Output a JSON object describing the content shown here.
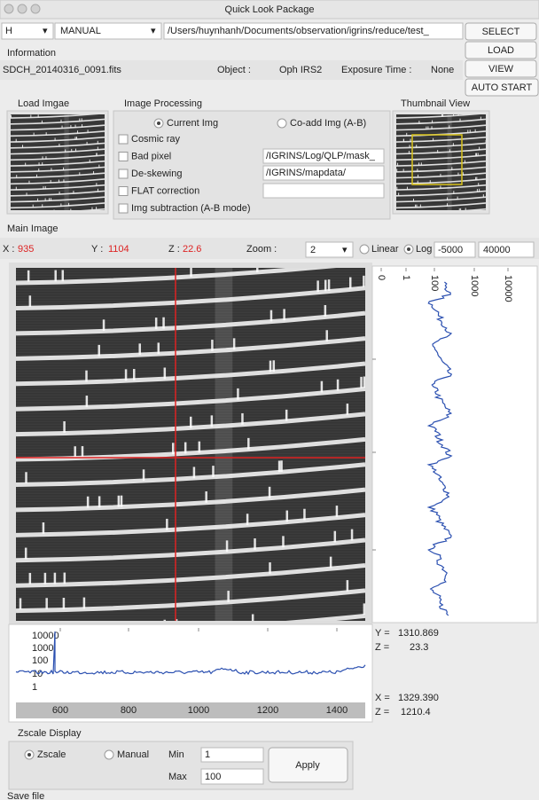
{
  "window": {
    "title": "Quick Look Package"
  },
  "toolbar": {
    "band": "H",
    "mode": "MANUAL",
    "path": "/Users/huynhanh/Documents/observation/igrins/reduce/test_",
    "buttons": [
      "SELECT",
      "LOAD",
      "VIEW",
      "AUTO START"
    ]
  },
  "information": {
    "label": "Information",
    "file": "SDCH_20140316_0091.fits",
    "object_label": "Object :",
    "object": "Oph IRS2",
    "exposure_label": "Exposure Time :",
    "exposure": "None"
  },
  "sections": {
    "load": "Load Imgae",
    "processing": "Image Processing",
    "thumbnail": "Thumbnail View",
    "main": "Main Image",
    "zscale": "Zscale Display",
    "save": "Save file"
  },
  "processing": {
    "radios": [
      "Current Img",
      "Co-add Img (A-B)"
    ],
    "checks": [
      "Cosmic ray",
      "Bad pixel",
      "De-skewing",
      "FLAT correction",
      "Img subtraction (A-B mode)"
    ],
    "fields": [
      "/IGRINS/Log/QLP/mask_",
      "/IGRINS/mapdata/"
    ]
  },
  "cursor": {
    "x_label": "X :",
    "x": "935",
    "y_label": "Y :",
    "y": "1104",
    "z_label": "Z :",
    "z": "22.6",
    "zoom_label": "Zoom :",
    "zoom": "2",
    "scales": [
      "Linear",
      "Log"
    ],
    "min": "-5000",
    "max": "40000"
  },
  "column_plot": {
    "ticks": [
      "0",
      "1",
      "100",
      "1000",
      "10000"
    ]
  },
  "row_plot": {
    "yticks": [
      "10000",
      "1000",
      "100",
      "10",
      "1"
    ],
    "xticks": [
      "600",
      "800",
      "1000",
      "1200",
      "1400"
    ]
  },
  "readout": {
    "y_label": "Y =",
    "y": "1310.869",
    "z1_label": "Z =",
    "z1": "23.3",
    "x_label": "X =",
    "x": "1329.390",
    "z2_label": "Z =",
    "z2": "1210.4"
  },
  "zscale": {
    "radios": [
      "Zscale",
      "Manual"
    ],
    "min_label": "Min",
    "min": "1",
    "max_label": "Max",
    "max": "100",
    "apply": "Apply"
  }
}
